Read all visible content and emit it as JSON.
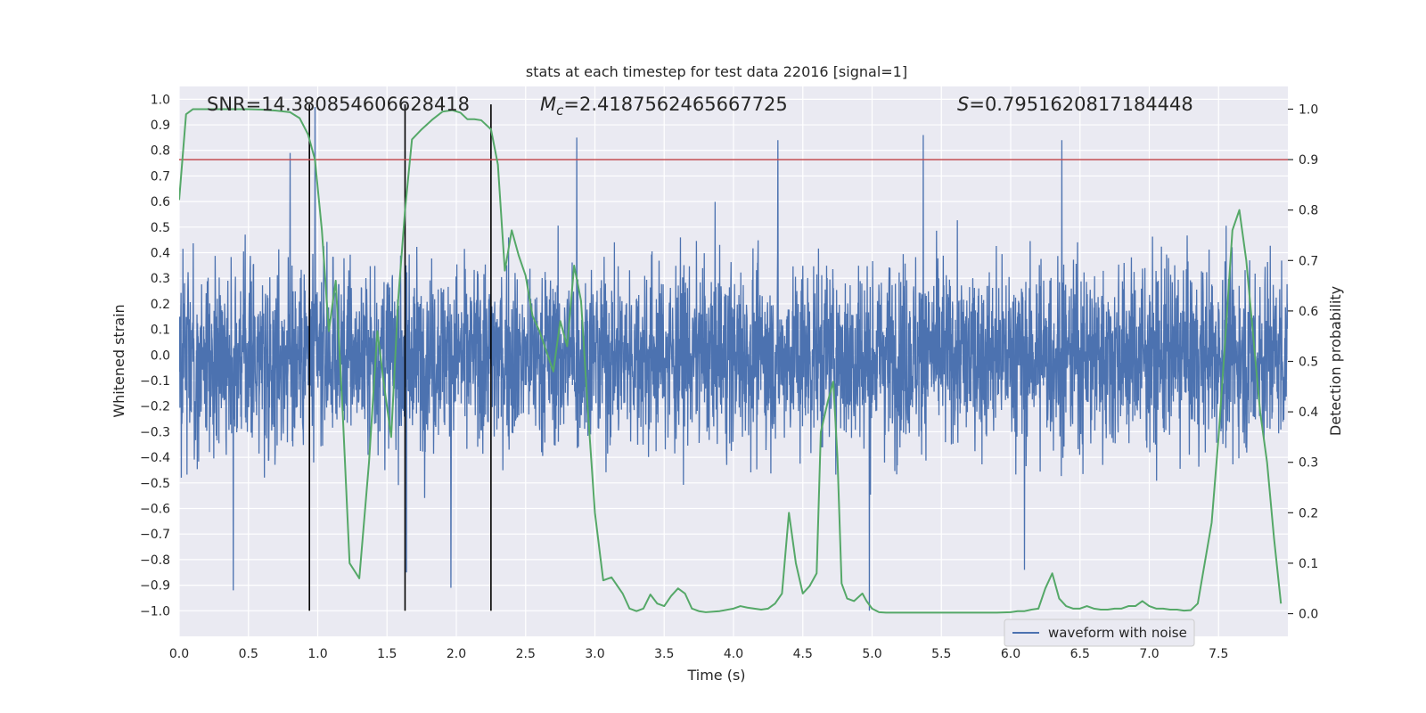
{
  "chart_data": {
    "type": "line",
    "title": "stats at each timestep for test data 22016 [signal=1]",
    "xlabel": "Time (s)",
    "ylabel_left": "Whitened strain",
    "ylabel_right": "Detection probability",
    "xlim": [
      0,
      8.0
    ],
    "ylim_left": [
      -1.1,
      1.05
    ],
    "ylim_right": [
      -0.045,
      1.045
    ],
    "x_ticks": [
      0.0,
      0.5,
      1.0,
      1.5,
      2.0,
      2.5,
      3.0,
      3.5,
      4.0,
      4.5,
      5.0,
      5.5,
      6.0,
      6.5,
      7.0,
      7.5
    ],
    "x_tick_labels": [
      "0.0",
      "0.5",
      "1.0",
      "1.5",
      "2.0",
      "2.5",
      "3.0",
      "3.5",
      "4.0",
      "4.5",
      "5.0",
      "5.5",
      "6.0",
      "6.5",
      "7.0",
      "7.5"
    ],
    "y_left_ticks": [
      -1.0,
      -0.9,
      -0.8,
      -0.7,
      -0.6,
      -0.5,
      -0.4,
      -0.3,
      -0.2,
      -0.1,
      0.0,
      0.1,
      0.2,
      0.3,
      0.4,
      0.5,
      0.6,
      0.7,
      0.8,
      0.9,
      1.0
    ],
    "y_left_tick_labels": [
      "−1.0",
      "−0.9",
      "−0.8",
      "−0.7",
      "−0.6",
      "−0.5",
      "−0.4",
      "−0.3",
      "−0.2",
      "−0.1",
      "0.0",
      "0.1",
      "0.2",
      "0.3",
      "0.4",
      "0.5",
      "0.6",
      "0.7",
      "0.8",
      "0.9",
      "1.0"
    ],
    "y_right_ticks": [
      0.0,
      0.1,
      0.2,
      0.3,
      0.4,
      0.5,
      0.6,
      0.7,
      0.8,
      0.9,
      1.0
    ],
    "y_right_tick_labels": [
      "0.0",
      "0.1",
      "0.2",
      "0.3",
      "0.4",
      "0.5",
      "0.6",
      "0.7",
      "0.8",
      "0.9",
      "1.0"
    ],
    "grid": true,
    "annotations": {
      "snr": "SNR=14.380854606628418",
      "mc_symbol": "M",
      "mc_subscript": "c",
      "mc_value": "=2.4187562465667725",
      "s_symbol": "S",
      "s_value": "=0.7951620817184448"
    },
    "series": [
      {
        "name": "waveform with noise",
        "axis": "left",
        "color": "#4c72b0",
        "sample_rate": 512,
        "envelope_typical": 0.42,
        "notable_peaks": [
          {
            "x": 0.39,
            "y": -0.92
          },
          {
            "x": 0.8,
            "y": 0.79
          },
          {
            "x": 0.98,
            "y": 0.97
          },
          {
            "x": 1.64,
            "y": -0.85
          },
          {
            "x": 1.96,
            "y": -0.91
          },
          {
            "x": 2.87,
            "y": 0.85
          },
          {
            "x": 4.32,
            "y": 0.84
          },
          {
            "x": 4.98,
            "y": -1.0
          },
          {
            "x": 5.37,
            "y": 0.86
          },
          {
            "x": 6.37,
            "y": 0.84
          },
          {
            "x": 6.1,
            "y": -0.84
          }
        ]
      },
      {
        "name": "",
        "axis": "right",
        "color": "#55a868",
        "x": [
          0.0,
          0.05,
          0.1,
          0.2,
          0.3,
          0.4,
          0.5,
          0.6,
          0.7,
          0.8,
          0.87,
          0.93,
          0.98,
          1.03,
          1.08,
          1.13,
          1.18,
          1.23,
          1.3,
          1.37,
          1.43,
          1.48,
          1.53,
          1.58,
          1.63,
          1.68,
          1.75,
          1.83,
          1.9,
          1.97,
          2.03,
          2.08,
          2.13,
          2.18,
          2.25,
          2.3,
          2.35,
          2.4,
          2.45,
          2.5,
          2.55,
          2.6,
          2.65,
          2.7,
          2.75,
          2.8,
          2.85,
          2.9,
          2.95,
          3.0,
          3.06,
          3.12,
          3.2,
          3.25,
          3.3,
          3.35,
          3.4,
          3.45,
          3.5,
          3.55,
          3.6,
          3.65,
          3.7,
          3.75,
          3.8,
          3.9,
          4.0,
          4.05,
          4.1,
          4.15,
          4.2,
          4.25,
          4.3,
          4.35,
          4.4,
          4.45,
          4.5,
          4.55,
          4.6,
          4.63,
          4.68,
          4.72,
          4.75,
          4.78,
          4.82,
          4.87,
          4.93,
          4.96,
          5.0,
          5.05,
          5.1,
          5.2,
          5.3,
          5.4,
          5.5,
          5.6,
          5.7,
          5.8,
          5.9,
          6.0,
          6.05,
          6.1,
          6.15,
          6.2,
          6.25,
          6.3,
          6.35,
          6.4,
          6.45,
          6.5,
          6.55,
          6.6,
          6.65,
          6.7,
          6.75,
          6.8,
          6.85,
          6.9,
          6.95,
          7.0,
          7.05,
          7.1,
          7.15,
          7.2,
          7.25,
          7.3,
          7.35,
          7.4,
          7.45,
          7.5,
          7.55,
          7.6,
          7.65,
          7.7,
          7.75,
          7.8,
          7.85,
          7.9,
          7.95
        ],
        "values": [
          0.82,
          0.99,
          1.0,
          1.0,
          1.0,
          1.0,
          1.0,
          0.999,
          0.997,
          0.994,
          0.982,
          0.95,
          0.9,
          0.76,
          0.56,
          0.66,
          0.4,
          0.1,
          0.07,
          0.3,
          0.56,
          0.45,
          0.35,
          0.62,
          0.8,
          0.94,
          0.96,
          0.98,
          0.995,
          0.998,
          0.993,
          0.98,
          0.98,
          0.978,
          0.96,
          0.89,
          0.68,
          0.76,
          0.71,
          0.67,
          0.59,
          0.56,
          0.52,
          0.48,
          0.58,
          0.53,
          0.69,
          0.62,
          0.4,
          0.2,
          0.066,
          0.072,
          0.04,
          0.01,
          0.005,
          0.01,
          0.038,
          0.02,
          0.015,
          0.035,
          0.05,
          0.04,
          0.01,
          0.005,
          0.003,
          0.005,
          0.01,
          0.015,
          0.012,
          0.01,
          0.008,
          0.01,
          0.02,
          0.04,
          0.2,
          0.1,
          0.04,
          0.055,
          0.08,
          0.36,
          0.42,
          0.46,
          0.31,
          0.06,
          0.03,
          0.025,
          0.04,
          0.025,
          0.01,
          0.003,
          0.002,
          0.002,
          0.002,
          0.002,
          0.002,
          0.002,
          0.002,
          0.002,
          0.002,
          0.003,
          0.005,
          0.005,
          0.008,
          0.01,
          0.05,
          0.08,
          0.03,
          0.015,
          0.01,
          0.01,
          0.015,
          0.01,
          0.008,
          0.008,
          0.01,
          0.01,
          0.015,
          0.015,
          0.025,
          0.015,
          0.01,
          0.01,
          0.008,
          0.008,
          0.006,
          0.007,
          0.02,
          0.1,
          0.18,
          0.35,
          0.55,
          0.76,
          0.8,
          0.7,
          0.55,
          0.4,
          0.3,
          0.15,
          0.02
        ]
      }
    ],
    "threshold": {
      "axis": "right",
      "value": 0.9,
      "color": "#c44e52"
    },
    "vertical_markers": {
      "x": [
        0.94,
        1.63,
        2.25
      ],
      "y_range": [
        -1.0,
        0.98
      ],
      "color": "#000000"
    },
    "legend": {
      "placement": "lower-right",
      "entries": [
        "waveform with noise"
      ]
    }
  }
}
